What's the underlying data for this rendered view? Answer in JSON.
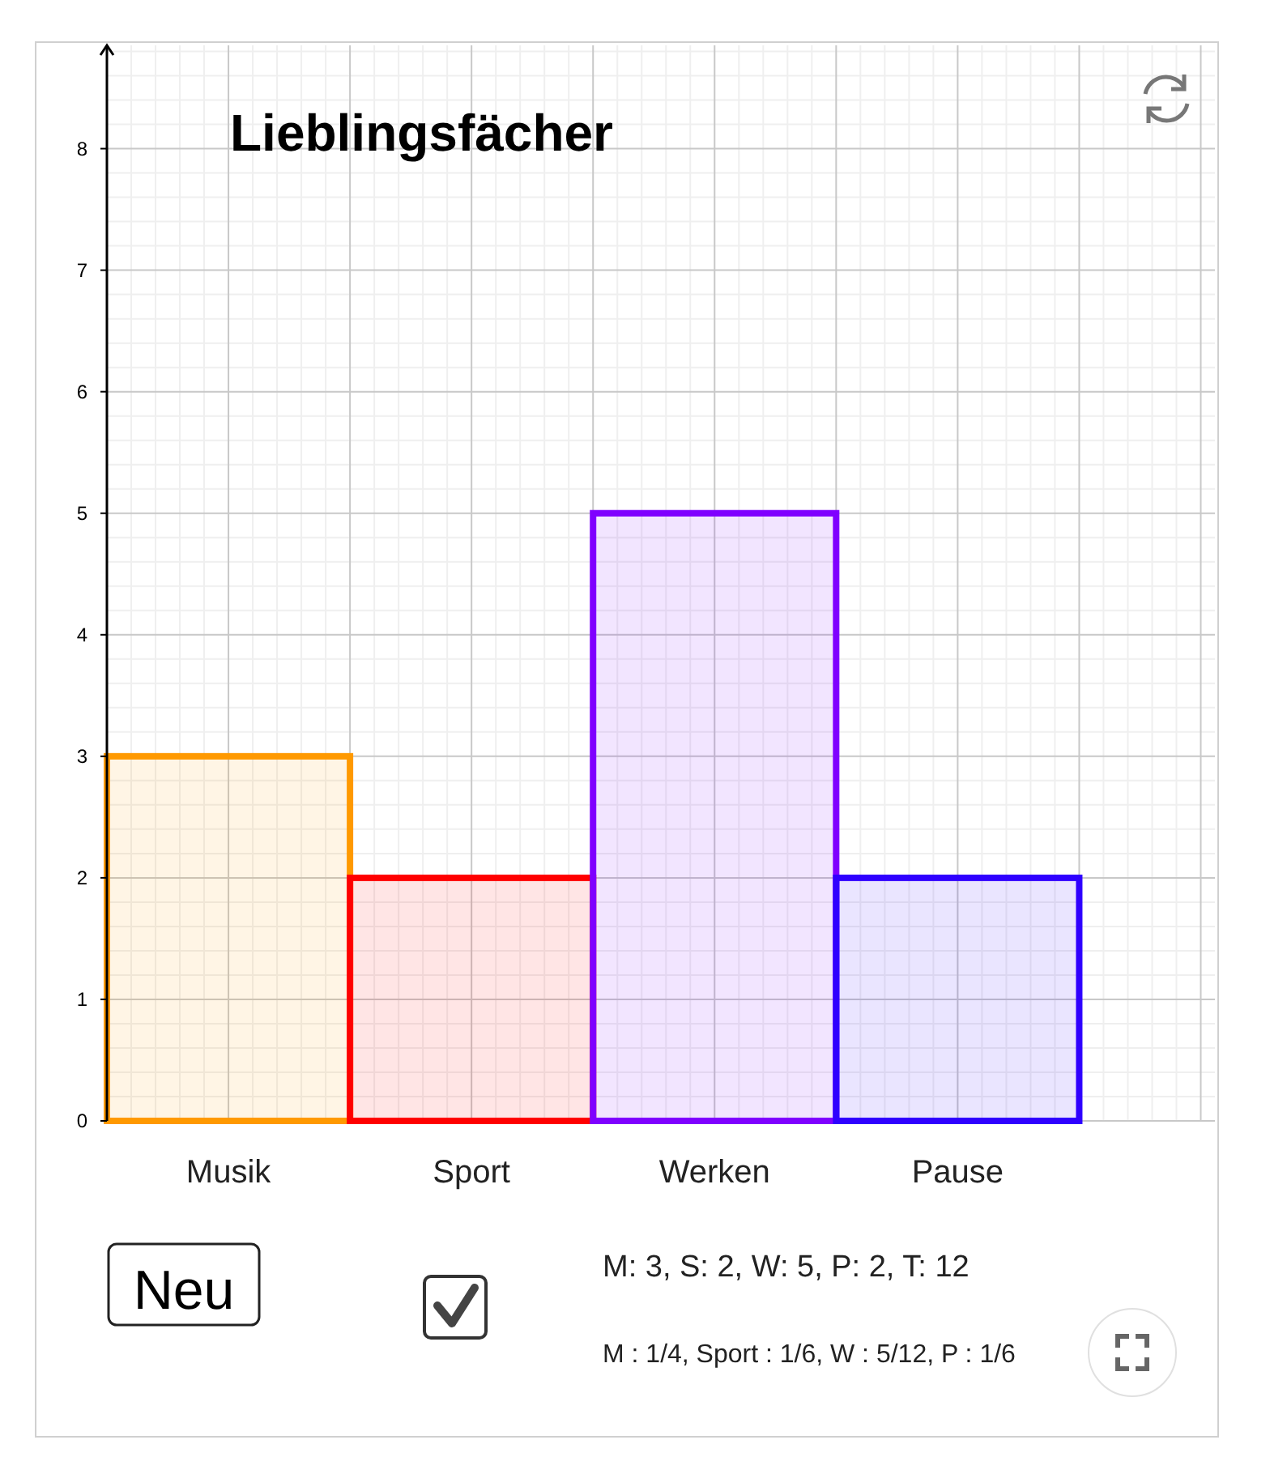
{
  "chart_data": {
    "type": "bar",
    "title": "Lieblingsfächer",
    "categories": [
      "Musik",
      "Sport",
      "Werken",
      "Pause"
    ],
    "values": [
      3,
      2,
      5,
      2
    ],
    "colors": [
      "#ff9900",
      "#ff0000",
      "#7f00ff",
      "#2f00ff"
    ],
    "ylim": [
      0,
      8.85
    ],
    "yticks": [
      0,
      1,
      2,
      3,
      4,
      5,
      6,
      7,
      8
    ],
    "grid": true,
    "annotations": [
      "Neu",
      "M: 3, S: 2, W: 5, P: 2, T: 12",
      "M : 1/4, Sport : 1/6, W : 5/12, P : 1/6"
    ]
  }
}
